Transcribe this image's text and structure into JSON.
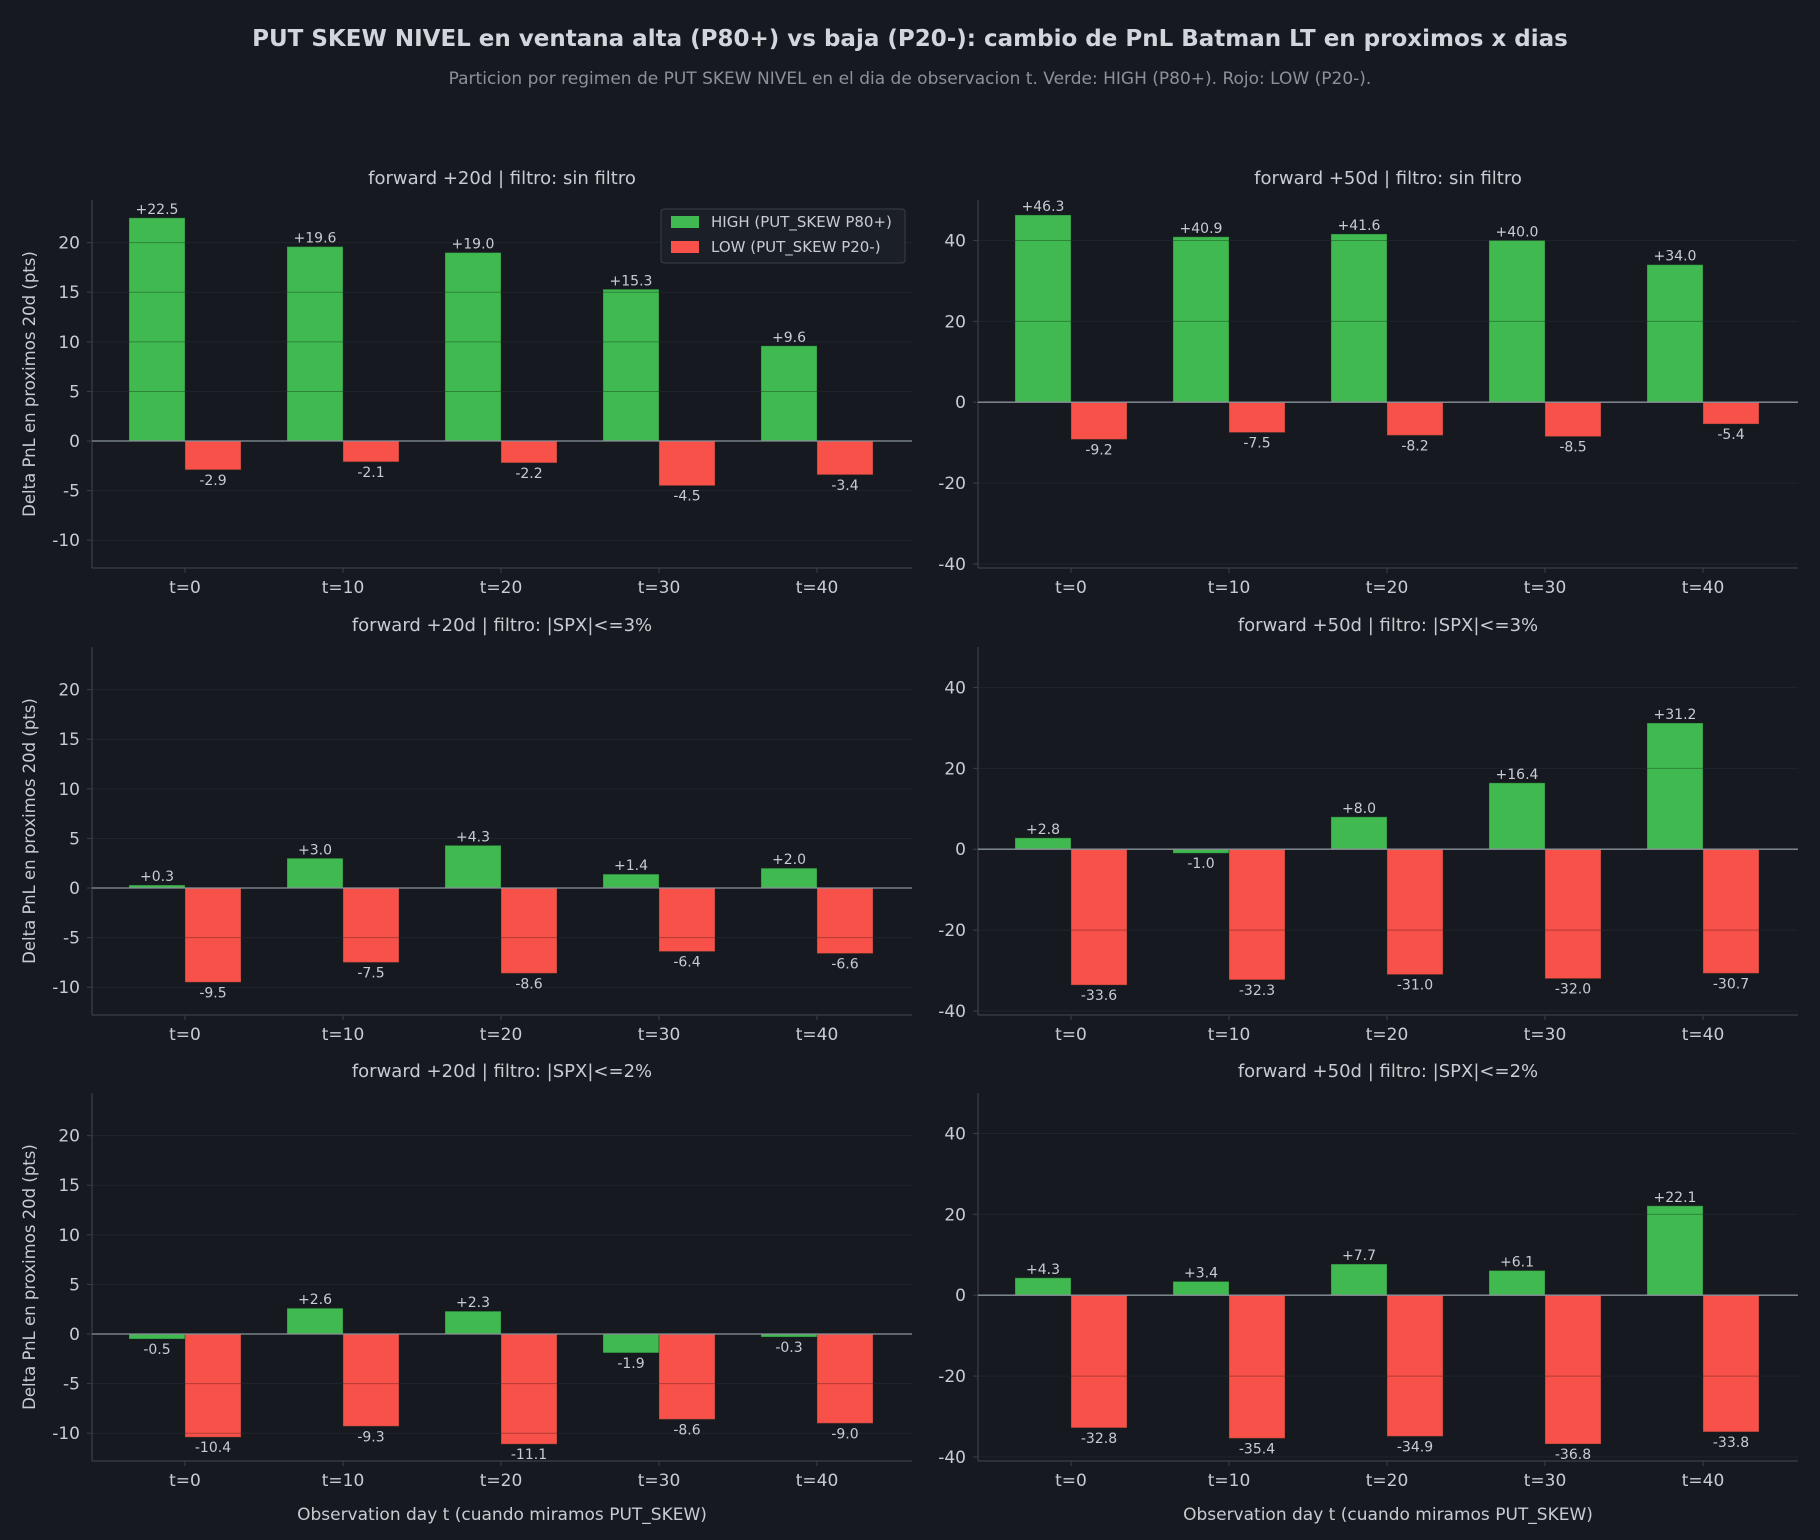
{
  "title": "PUT SKEW NIVEL en ventana alta (P80+) vs baja (P20-): cambio de PnL Batman LT en proximos x dias",
  "subtitle": "Particion por regimen de PUT SKEW NIVEL en el dia de observacion t. Verde: HIGH (P80+).  Rojo: LOW (P20-).",
  "colors": {
    "background": "#161a20",
    "high": "#3fb950",
    "low": "#f85149",
    "text": "#c8ccd2",
    "axis": "#3a3f47",
    "grid": "#1f242b",
    "zero_line": "#8b929a"
  },
  "legend": {
    "placement": "top-right of first panel",
    "high_label": "HIGH (PUT_SKEW P80+)",
    "low_label": "LOW (PUT_SKEW P20-)"
  },
  "chart_data": [
    {
      "type": "bar",
      "title": "forward +20d  |  filtro: sin filtro",
      "ylabel": "Delta PnL en proximos 20d (pts)",
      "xlabel": "",
      "categories": [
        "t=0",
        "t=10",
        "t=20",
        "t=30",
        "t=40"
      ],
      "ylim": [
        -12.8,
        24.3
      ],
      "yticks": [
        -10,
        -5,
        0,
        5,
        10,
        15,
        20
      ],
      "ytick_labels": [
        "-10",
        "-5",
        "0",
        "5",
        "10",
        "15",
        "20"
      ],
      "series": [
        {
          "name": "HIGH (PUT_SKEW P80+)",
          "values": [
            22.5,
            19.6,
            19.0,
            15.3,
            9.6
          ],
          "labels": [
            "+22.5",
            "+19.6",
            "+19.0",
            "+15.3",
            "+9.6"
          ]
        },
        {
          "name": "LOW (PUT_SKEW P20-)",
          "values": [
            -2.9,
            -2.1,
            -2.2,
            -4.5,
            -3.4
          ],
          "labels": [
            "-2.9",
            "-2.1",
            "-2.2",
            "-4.5",
            "-3.4"
          ]
        }
      ],
      "grid": true
    },
    {
      "type": "bar",
      "title": "forward +50d  |  filtro: sin filtro",
      "ylabel": "",
      "xlabel": "",
      "categories": [
        "t=0",
        "t=10",
        "t=20",
        "t=30",
        "t=40"
      ],
      "ylim": [
        -41,
        50
      ],
      "yticks": [
        -40,
        -20,
        0,
        20,
        40
      ],
      "ytick_labels": [
        "-40",
        "-20",
        "0",
        "20",
        "40"
      ],
      "series": [
        {
          "name": "HIGH (PUT_SKEW P80+)",
          "values": [
            46.3,
            40.9,
            41.6,
            40.0,
            34.0
          ],
          "labels": [
            "+46.3",
            "+40.9",
            "+41.6",
            "+40.0",
            "+34.0"
          ]
        },
        {
          "name": "LOW (PUT_SKEW P20-)",
          "values": [
            -9.2,
            -7.5,
            -8.2,
            -8.5,
            -5.4
          ],
          "labels": [
            "-9.2",
            "-7.5",
            "-8.2",
            "-8.5",
            "-5.4"
          ]
        }
      ],
      "grid": true
    },
    {
      "type": "bar",
      "title": "forward +20d  |  filtro: |SPX|<=3%",
      "ylabel": "Delta PnL en proximos 20d (pts)",
      "xlabel": "",
      "categories": [
        "t=0",
        "t=10",
        "t=20",
        "t=30",
        "t=40"
      ],
      "ylim": [
        -12.8,
        24.3
      ],
      "yticks": [
        -10,
        -5,
        0,
        5,
        10,
        15,
        20
      ],
      "ytick_labels": [
        "-10",
        "-5",
        "0",
        "5",
        "10",
        "15",
        "20"
      ],
      "series": [
        {
          "name": "HIGH (PUT_SKEW P80+)",
          "values": [
            0.3,
            3.0,
            4.3,
            1.4,
            2.0
          ],
          "labels": [
            "+0.3",
            "+3.0",
            "+4.3",
            "+1.4",
            "+2.0"
          ]
        },
        {
          "name": "LOW (PUT_SKEW P20-)",
          "values": [
            -9.5,
            -7.5,
            -8.6,
            -6.4,
            -6.6
          ],
          "labels": [
            "-9.5",
            "-7.5",
            "-8.6",
            "-6.4",
            "-6.6"
          ]
        }
      ],
      "grid": true
    },
    {
      "type": "bar",
      "title": "forward +50d  |  filtro: |SPX|<=3%",
      "ylabel": "",
      "xlabel": "",
      "categories": [
        "t=0",
        "t=10",
        "t=20",
        "t=30",
        "t=40"
      ],
      "ylim": [
        -41,
        50
      ],
      "yticks": [
        -40,
        -20,
        0,
        20,
        40
      ],
      "ytick_labels": [
        "-40",
        "-20",
        "0",
        "20",
        "40"
      ],
      "series": [
        {
          "name": "HIGH (PUT_SKEW P80+)",
          "values": [
            2.8,
            -1.0,
            8.0,
            16.4,
            31.2
          ],
          "labels": [
            "+2.8",
            "-1.0",
            "+8.0",
            "+16.4",
            "+31.2"
          ]
        },
        {
          "name": "LOW (PUT_SKEW P20-)",
          "values": [
            -33.6,
            -32.3,
            -31.0,
            -32.0,
            -30.7
          ],
          "labels": [
            "-33.6",
            "-32.3",
            "-31.0",
            "-32.0",
            "-30.7"
          ]
        }
      ],
      "grid": true
    },
    {
      "type": "bar",
      "title": "forward +20d  |  filtro: |SPX|<=2%",
      "ylabel": "Delta PnL en proximos 20d (pts)",
      "xlabel": "Observation day t (cuando miramos PUT_SKEW)",
      "categories": [
        "t=0",
        "t=10",
        "t=20",
        "t=30",
        "t=40"
      ],
      "ylim": [
        -12.8,
        24.3
      ],
      "yticks": [
        -10,
        -5,
        0,
        5,
        10,
        15,
        20
      ],
      "ytick_labels": [
        "-10",
        "-5",
        "0",
        "5",
        "10",
        "15",
        "20"
      ],
      "series": [
        {
          "name": "HIGH (PUT_SKEW P80+)",
          "values": [
            -0.5,
            2.6,
            2.3,
            -1.9,
            -0.3
          ],
          "labels": [
            "-0.5",
            "+2.6",
            "+2.3",
            "-1.9",
            "-0.3"
          ]
        },
        {
          "name": "LOW (PUT_SKEW P20-)",
          "values": [
            -10.4,
            -9.3,
            -11.1,
            -8.6,
            -9.0
          ],
          "labels": [
            "-10.4",
            "-9.3",
            "-11.1",
            "-8.6",
            "-9.0"
          ]
        }
      ],
      "grid": true
    },
    {
      "type": "bar",
      "title": "forward +50d  |  filtro: |SPX|<=2%",
      "ylabel": "",
      "xlabel": "Observation day t (cuando miramos PUT_SKEW)",
      "categories": [
        "t=0",
        "t=10",
        "t=20",
        "t=30",
        "t=40"
      ],
      "ylim": [
        -41,
        50
      ],
      "yticks": [
        -40,
        -20,
        0,
        20,
        40
      ],
      "ytick_labels": [
        "-40",
        "-20",
        "0",
        "20",
        "40"
      ],
      "series": [
        {
          "name": "HIGH (PUT_SKEW P80+)",
          "values": [
            4.3,
            3.4,
            7.7,
            6.1,
            22.1
          ],
          "labels": [
            "+4.3",
            "+3.4",
            "+7.7",
            "+6.1",
            "+22.1"
          ]
        },
        {
          "name": "LOW (PUT_SKEW P20-)",
          "values": [
            -32.8,
            -35.4,
            -34.9,
            -36.8,
            -33.8
          ],
          "labels": [
            "-32.8",
            "-35.4",
            "-34.9",
            "-36.8",
            "-33.8"
          ]
        }
      ],
      "grid": true
    }
  ]
}
